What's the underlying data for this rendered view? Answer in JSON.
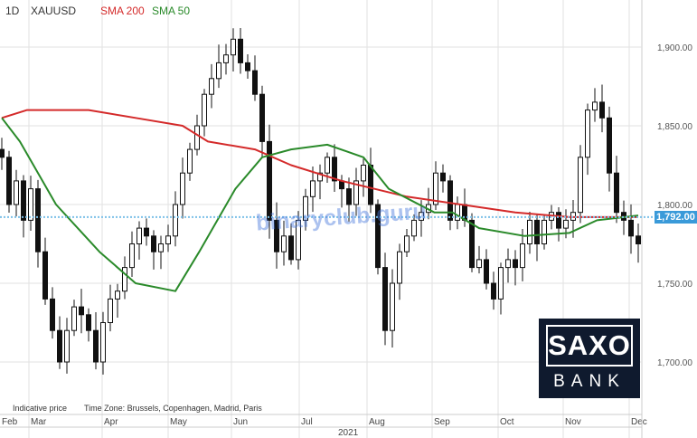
{
  "header": {
    "interval": "1D",
    "symbol": "XAUUSD",
    "sma200_label": "SMA 200",
    "sma50_label": "SMA 50"
  },
  "footer": {
    "note": "Indicative price",
    "timezone": "Time Zone: Brussels, Copenhagen, Madrid, Paris"
  },
  "watermark": "binaryclub.guru",
  "logo": {
    "top": "SAXO",
    "bottom": "BANK"
  },
  "current_price_label": "1,792.00",
  "colors": {
    "sma200": "#d42a2a",
    "sma50": "#2a8a2a",
    "price_tag": "#3a9ad9",
    "logo_bg": "#0f1a2e"
  },
  "chart_data": {
    "type": "candlestick",
    "symbol": "XAUUSD",
    "year_label": "2021",
    "x_tick_labels": [
      "Feb",
      "Mar",
      "Apr",
      "May",
      "Jun",
      "Jul",
      "Aug",
      "Sep",
      "Oct",
      "Nov",
      "Dec"
    ],
    "y_tick_labels": [
      "1,900.00",
      "1,850.00",
      "1,800.00",
      "1,750.00",
      "1,700.00"
    ],
    "y_ticks": [
      1900,
      1850,
      1800,
      1750,
      1700
    ],
    "ylim": [
      1665,
      1925
    ],
    "current_price": 1792,
    "closes": [
      1830,
      1800,
      1815,
      1790,
      1810,
      1770,
      1740,
      1720,
      1700,
      1720,
      1735,
      1730,
      1720,
      1700,
      1725,
      1740,
      1745,
      1760,
      1775,
      1785,
      1780,
      1770,
      1775,
      1780,
      1800,
      1820,
      1835,
      1850,
      1870,
      1880,
      1890,
      1895,
      1905,
      1890,
      1885,
      1870,
      1840,
      1790,
      1770,
      1780,
      1765,
      1790,
      1805,
      1815,
      1820,
      1830,
      1815,
      1810,
      1800,
      1815,
      1825,
      1800,
      1760,
      1720,
      1750,
      1770,
      1780,
      1790,
      1795,
      1800,
      1820,
      1815,
      1790,
      1800,
      1790,
      1760,
      1765,
      1750,
      1740,
      1760,
      1765,
      1760,
      1775,
      1790,
      1775,
      1790,
      1795,
      1785,
      1790,
      1795,
      1830,
      1860,
      1865,
      1855,
      1820,
      1795,
      1790,
      1780,
      1775
    ],
    "sma200": [
      [
        0,
        1855
      ],
      [
        3.5,
        1860
      ],
      [
        12,
        1860
      ],
      [
        18.5,
        1855
      ],
      [
        25,
        1850
      ],
      [
        28.5,
        1840
      ],
      [
        35,
        1835
      ],
      [
        40,
        1825
      ],
      [
        47,
        1815
      ],
      [
        56,
        1805
      ],
      [
        63.5,
        1800
      ],
      [
        71,
        1795
      ],
      [
        78.5,
        1792
      ],
      [
        88,
        1792
      ]
    ],
    "sma50": [
      [
        0,
        1855
      ],
      [
        2.5,
        1840
      ],
      [
        7.5,
        1800
      ],
      [
        13.5,
        1770
      ],
      [
        18.5,
        1750
      ],
      [
        24,
        1745
      ],
      [
        27.3,
        1770
      ],
      [
        32.3,
        1810
      ],
      [
        36,
        1830
      ],
      [
        40,
        1835
      ],
      [
        45,
        1838
      ],
      [
        50,
        1830
      ],
      [
        53.5,
        1810
      ],
      [
        59.8,
        1795
      ],
      [
        62.3,
        1795
      ],
      [
        66,
        1785
      ],
      [
        72.3,
        1780
      ],
      [
        78.5,
        1782
      ],
      [
        82.3,
        1790
      ],
      [
        88,
        1793
      ]
    ]
  }
}
